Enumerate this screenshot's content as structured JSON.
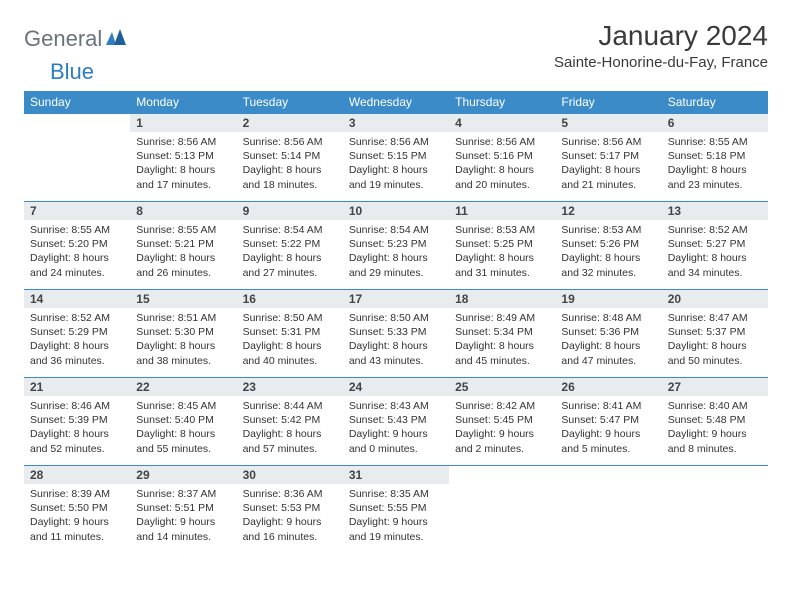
{
  "logo": {
    "part1": "General",
    "part2": "Blue"
  },
  "title": "January 2024",
  "location": "Sainte-Honorine-du-Fay, France",
  "colors": {
    "header_bg": "#3b8bc9",
    "header_text": "#ffffff",
    "daynum_bg": "#e8ecef",
    "border": "#3b8bc9",
    "logo_gray": "#6b7280",
    "logo_blue": "#2d7dc4",
    "text": "#333333",
    "background": "#ffffff"
  },
  "typography": {
    "title_fontsize": 28,
    "location_fontsize": 15,
    "header_fontsize": 12,
    "daynum_fontsize": 12,
    "content_fontsize": 10.5
  },
  "day_headers": [
    "Sunday",
    "Monday",
    "Tuesday",
    "Wednesday",
    "Thursday",
    "Friday",
    "Saturday"
  ],
  "weeks": [
    [
      {
        "empty": true
      },
      {
        "day": "1",
        "sunrise": "8:56 AM",
        "sunset": "5:13 PM",
        "daylight": "8 hours and 17 minutes."
      },
      {
        "day": "2",
        "sunrise": "8:56 AM",
        "sunset": "5:14 PM",
        "daylight": "8 hours and 18 minutes."
      },
      {
        "day": "3",
        "sunrise": "8:56 AM",
        "sunset": "5:15 PM",
        "daylight": "8 hours and 19 minutes."
      },
      {
        "day": "4",
        "sunrise": "8:56 AM",
        "sunset": "5:16 PM",
        "daylight": "8 hours and 20 minutes."
      },
      {
        "day": "5",
        "sunrise": "8:56 AM",
        "sunset": "5:17 PM",
        "daylight": "8 hours and 21 minutes."
      },
      {
        "day": "6",
        "sunrise": "8:55 AM",
        "sunset": "5:18 PM",
        "daylight": "8 hours and 23 minutes."
      }
    ],
    [
      {
        "day": "7",
        "sunrise": "8:55 AM",
        "sunset": "5:20 PM",
        "daylight": "8 hours and 24 minutes."
      },
      {
        "day": "8",
        "sunrise": "8:55 AM",
        "sunset": "5:21 PM",
        "daylight": "8 hours and 26 minutes."
      },
      {
        "day": "9",
        "sunrise": "8:54 AM",
        "sunset": "5:22 PM",
        "daylight": "8 hours and 27 minutes."
      },
      {
        "day": "10",
        "sunrise": "8:54 AM",
        "sunset": "5:23 PM",
        "daylight": "8 hours and 29 minutes."
      },
      {
        "day": "11",
        "sunrise": "8:53 AM",
        "sunset": "5:25 PM",
        "daylight": "8 hours and 31 minutes."
      },
      {
        "day": "12",
        "sunrise": "8:53 AM",
        "sunset": "5:26 PM",
        "daylight": "8 hours and 32 minutes."
      },
      {
        "day": "13",
        "sunrise": "8:52 AM",
        "sunset": "5:27 PM",
        "daylight": "8 hours and 34 minutes."
      }
    ],
    [
      {
        "day": "14",
        "sunrise": "8:52 AM",
        "sunset": "5:29 PM",
        "daylight": "8 hours and 36 minutes."
      },
      {
        "day": "15",
        "sunrise": "8:51 AM",
        "sunset": "5:30 PM",
        "daylight": "8 hours and 38 minutes."
      },
      {
        "day": "16",
        "sunrise": "8:50 AM",
        "sunset": "5:31 PM",
        "daylight": "8 hours and 40 minutes."
      },
      {
        "day": "17",
        "sunrise": "8:50 AM",
        "sunset": "5:33 PM",
        "daylight": "8 hours and 43 minutes."
      },
      {
        "day": "18",
        "sunrise": "8:49 AM",
        "sunset": "5:34 PM",
        "daylight": "8 hours and 45 minutes."
      },
      {
        "day": "19",
        "sunrise": "8:48 AM",
        "sunset": "5:36 PM",
        "daylight": "8 hours and 47 minutes."
      },
      {
        "day": "20",
        "sunrise": "8:47 AM",
        "sunset": "5:37 PM",
        "daylight": "8 hours and 50 minutes."
      }
    ],
    [
      {
        "day": "21",
        "sunrise": "8:46 AM",
        "sunset": "5:39 PM",
        "daylight": "8 hours and 52 minutes."
      },
      {
        "day": "22",
        "sunrise": "8:45 AM",
        "sunset": "5:40 PM",
        "daylight": "8 hours and 55 minutes."
      },
      {
        "day": "23",
        "sunrise": "8:44 AM",
        "sunset": "5:42 PM",
        "daylight": "8 hours and 57 minutes."
      },
      {
        "day": "24",
        "sunrise": "8:43 AM",
        "sunset": "5:43 PM",
        "daylight": "9 hours and 0 minutes."
      },
      {
        "day": "25",
        "sunrise": "8:42 AM",
        "sunset": "5:45 PM",
        "daylight": "9 hours and 2 minutes."
      },
      {
        "day": "26",
        "sunrise": "8:41 AM",
        "sunset": "5:47 PM",
        "daylight": "9 hours and 5 minutes."
      },
      {
        "day": "27",
        "sunrise": "8:40 AM",
        "sunset": "5:48 PM",
        "daylight": "9 hours and 8 minutes."
      }
    ],
    [
      {
        "day": "28",
        "sunrise": "8:39 AM",
        "sunset": "5:50 PM",
        "daylight": "9 hours and 11 minutes."
      },
      {
        "day": "29",
        "sunrise": "8:37 AM",
        "sunset": "5:51 PM",
        "daylight": "9 hours and 14 minutes."
      },
      {
        "day": "30",
        "sunrise": "8:36 AM",
        "sunset": "5:53 PM",
        "daylight": "9 hours and 16 minutes."
      },
      {
        "day": "31",
        "sunrise": "8:35 AM",
        "sunset": "5:55 PM",
        "daylight": "9 hours and 19 minutes."
      },
      {
        "empty": true
      },
      {
        "empty": true
      },
      {
        "empty": true
      }
    ]
  ],
  "labels": {
    "sunrise_prefix": "Sunrise: ",
    "sunset_prefix": "Sunset: ",
    "daylight_prefix": "Daylight: "
  }
}
